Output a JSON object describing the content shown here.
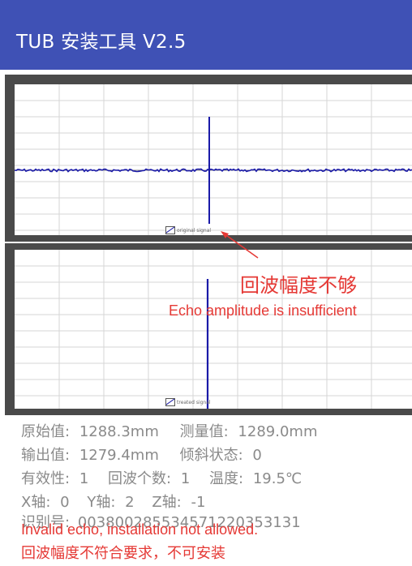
{
  "app": {
    "title": "TUB 安装工具 V2.5"
  },
  "colors": {
    "appbar": "#3f51b5",
    "signal": "#1a1aa8",
    "annotation": "#e53935",
    "frame": "#4a4a4a"
  },
  "panels": [
    {
      "legend": "original signal"
    },
    {
      "legend": "treated signal"
    }
  ],
  "annotation": {
    "cn": "回波幅度不够",
    "en": "Echo amplitude is insufficient"
  },
  "readings": {
    "raw_label": "原始值:",
    "raw_value": "1288.3mm",
    "measured_label": "测量值:",
    "measured_value": "1289.0mm",
    "output_label": "输出值:",
    "output_value": "1279.4mm",
    "tilt_label": "倾斜状态:",
    "tilt_value": "0",
    "validity_label": "有效性:",
    "validity_value": "1",
    "echo_count_label": "回波个数:",
    "echo_count_value": "1",
    "temp_label": "温度:",
    "temp_value": "19.5℃",
    "x_label": "X轴:",
    "x_value": "0",
    "y_label": "Y轴:",
    "y_value": "2",
    "z_label": "Z轴:",
    "z_value": "-1",
    "id_label": "识别号:",
    "id_value": "003800285534571220353131"
  },
  "warning": {
    "en": "Invalid echo, installation not allowed.",
    "cn": "回波幅度不符合要求，不可安装"
  }
}
